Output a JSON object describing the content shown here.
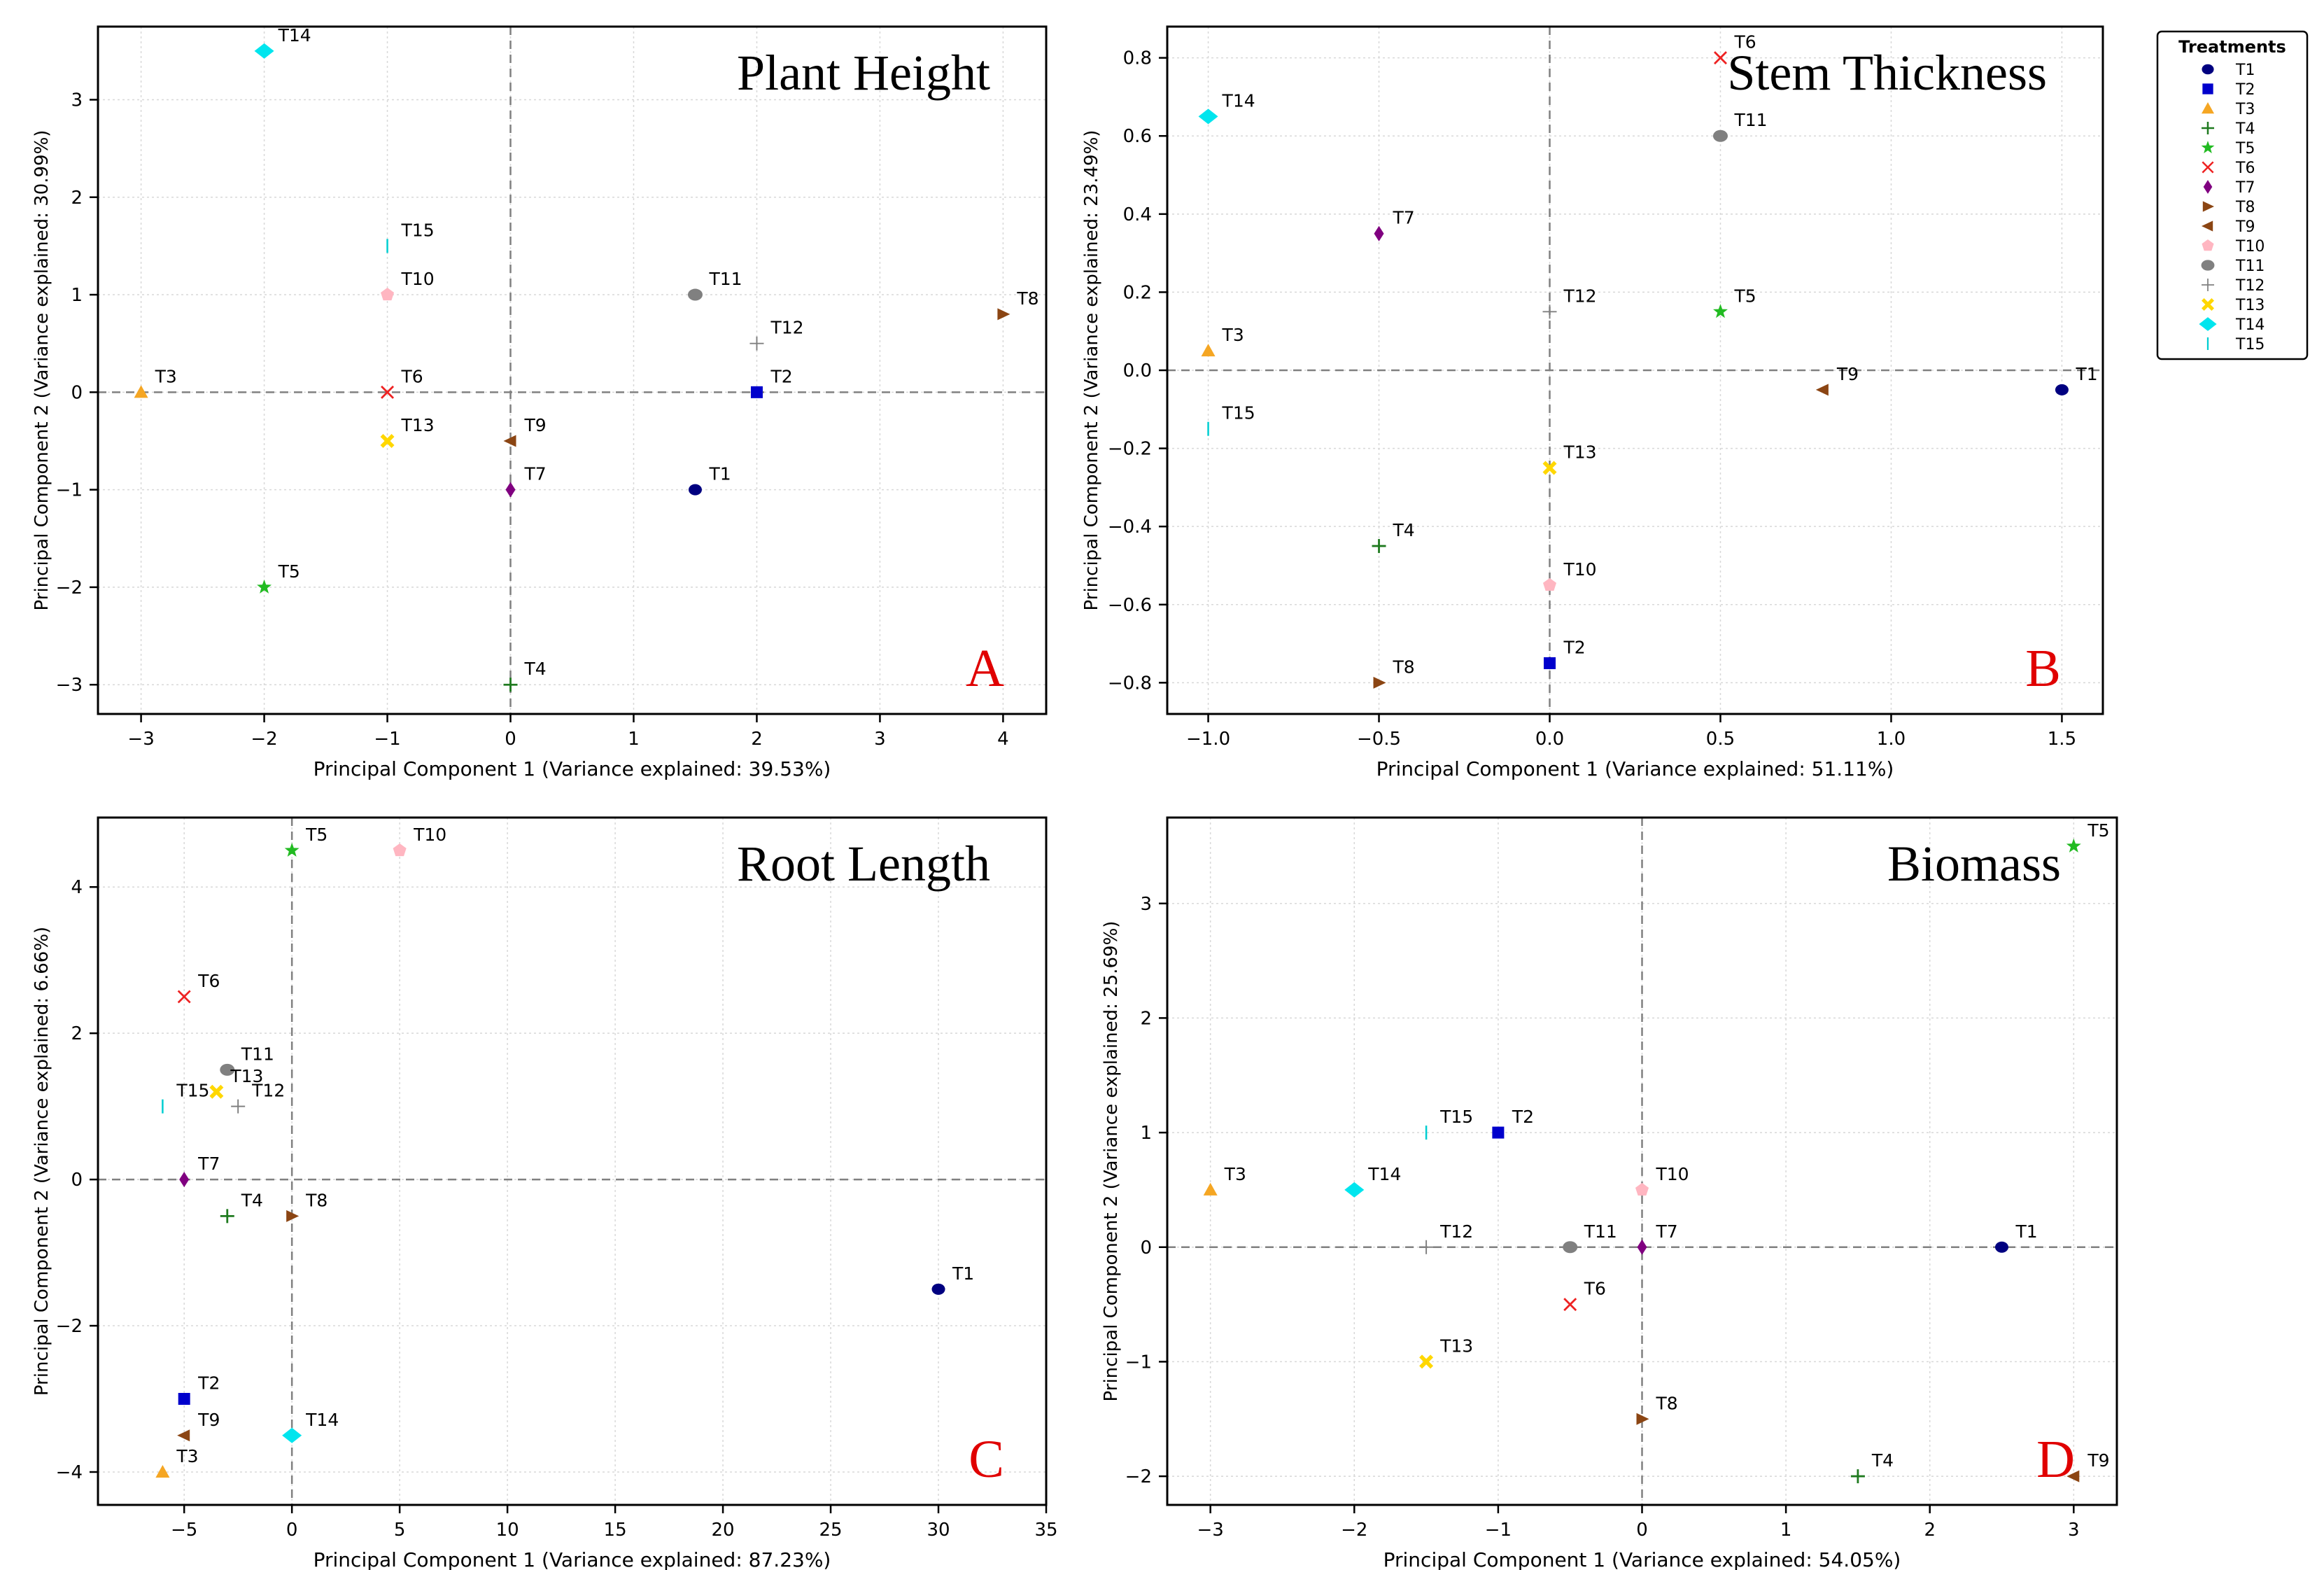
{
  "legend": {
    "title": "Treatments",
    "placement": "right",
    "entries": [
      {
        "label": "T1",
        "marker": "circle",
        "color": "#000080"
      },
      {
        "label": "T2",
        "marker": "square",
        "color": "#0000cc"
      },
      {
        "label": "T3",
        "marker": "triangle-up",
        "color": "#f5a623"
      },
      {
        "label": "T4",
        "marker": "plus",
        "color": "#1f7a1f"
      },
      {
        "label": "T5",
        "marker": "star",
        "color": "#22bb22"
      },
      {
        "label": "T6",
        "marker": "x",
        "color": "#ee2222"
      },
      {
        "label": "T7",
        "marker": "diamond",
        "color": "#800080"
      },
      {
        "label": "T8",
        "marker": "triangle-right",
        "color": "#8b4513"
      },
      {
        "label": "T9",
        "marker": "triangle-left",
        "color": "#8b4513"
      },
      {
        "label": "T10",
        "marker": "pentagon",
        "color": "#ffb6c1"
      },
      {
        "label": "T11",
        "marker": "ellipse",
        "color": "#808080"
      },
      {
        "label": "T12",
        "marker": "thin-plus",
        "color": "#808080"
      },
      {
        "label": "T13",
        "marker": "bold-x",
        "color": "#ffd700"
      },
      {
        "label": "T14",
        "marker": "diamond-wide",
        "color": "#00e5ee"
      },
      {
        "label": "T15",
        "marker": "vline",
        "color": "#00ced1"
      }
    ]
  },
  "chart_data": [
    {
      "type": "scatter",
      "title": "Plant Height",
      "panel_letter": "A",
      "xlabel": "Principal Component 1 (Variance explained: 39.53%)",
      "ylabel": "Principal Component 2 (Variance explained: 30.99%)",
      "xlim": [
        -3.35,
        4.35
      ],
      "ylim": [
        -3.3,
        3.75
      ],
      "xticks": [
        -3,
        -2,
        -1,
        0,
        1,
        2,
        3,
        4
      ],
      "yticks": [
        -3,
        -2,
        -1,
        0,
        1,
        2,
        3
      ],
      "grid": true,
      "reference_lines": {
        "x": 0,
        "y": 0
      },
      "points": [
        {
          "label": "T1",
          "x": 1.5,
          "y": -1.0
        },
        {
          "label": "T2",
          "x": 2.0,
          "y": 0.0
        },
        {
          "label": "T3",
          "x": -3.0,
          "y": 0.0
        },
        {
          "label": "T4",
          "x": 0.0,
          "y": -3.0
        },
        {
          "label": "T5",
          "x": -2.0,
          "y": -2.0
        },
        {
          "label": "T6",
          "x": -1.0,
          "y": 0.0
        },
        {
          "label": "T7",
          "x": 0.0,
          "y": -1.0
        },
        {
          "label": "T8",
          "x": 4.0,
          "y": 0.8
        },
        {
          "label": "T9",
          "x": 0.0,
          "y": -0.5
        },
        {
          "label": "T10",
          "x": -1.0,
          "y": 1.0
        },
        {
          "label": "T11",
          "x": 1.5,
          "y": 1.0
        },
        {
          "label": "T12",
          "x": 2.0,
          "y": 0.5
        },
        {
          "label": "T13",
          "x": -1.0,
          "y": -0.5
        },
        {
          "label": "T14",
          "x": -2.0,
          "y": 3.5
        },
        {
          "label": "T15",
          "x": -1.0,
          "y": 1.5
        }
      ]
    },
    {
      "type": "scatter",
      "title": "Stem Thickness",
      "panel_letter": "B",
      "xlabel": "Principal Component 1 (Variance explained: 51.11%)",
      "ylabel": "Principal Component 2 (Variance explained: 23.49%)",
      "xlim": [
        -1.12,
        1.62
      ],
      "ylim": [
        -0.88,
        0.88
      ],
      "xticks": [
        -1.0,
        -0.5,
        0.0,
        0.5,
        1.0,
        1.5
      ],
      "yticks": [
        -0.8,
        -0.6,
        -0.4,
        -0.2,
        0.0,
        0.2,
        0.4,
        0.6,
        0.8
      ],
      "grid": true,
      "reference_lines": {
        "x": 0,
        "y": 0
      },
      "points": [
        {
          "label": "T1",
          "x": 1.5,
          "y": -0.05
        },
        {
          "label": "T2",
          "x": 0.0,
          "y": -0.75
        },
        {
          "label": "T3",
          "x": -1.0,
          "y": 0.05
        },
        {
          "label": "T4",
          "x": -0.5,
          "y": -0.45
        },
        {
          "label": "T5",
          "x": 0.5,
          "y": 0.15
        },
        {
          "label": "T6",
          "x": 0.5,
          "y": 0.8
        },
        {
          "label": "T7",
          "x": -0.5,
          "y": 0.35
        },
        {
          "label": "T8",
          "x": -0.5,
          "y": -0.8
        },
        {
          "label": "T9",
          "x": 0.8,
          "y": -0.05
        },
        {
          "label": "T10",
          "x": 0.0,
          "y": -0.55
        },
        {
          "label": "T11",
          "x": 0.5,
          "y": 0.6
        },
        {
          "label": "T12",
          "x": 0.0,
          "y": 0.15
        },
        {
          "label": "T13",
          "x": 0.0,
          "y": -0.25
        },
        {
          "label": "T14",
          "x": -1.0,
          "y": 0.65
        },
        {
          "label": "T15",
          "x": -1.0,
          "y": -0.15
        }
      ]
    },
    {
      "type": "scatter",
      "title": "Root Length",
      "panel_letter": "C",
      "xlabel": "Principal Component 1 (Variance explained: 87.23%)",
      "ylabel": "Principal Component 2 (Variance explained: 6.66%)",
      "xlim": [
        -9.0,
        35.0
      ],
      "ylim": [
        -4.45,
        4.95
      ],
      "xticks": [
        -5,
        0,
        5,
        10,
        15,
        20,
        25,
        30,
        35
      ],
      "yticks": [
        -4,
        -2,
        0,
        2,
        4
      ],
      "grid": true,
      "reference_lines": {
        "x": 0,
        "y": 0
      },
      "points": [
        {
          "label": "T1",
          "x": 30.0,
          "y": -1.5
        },
        {
          "label": "T2",
          "x": -5.0,
          "y": -3.0
        },
        {
          "label": "T3",
          "x": -6.0,
          "y": -4.0
        },
        {
          "label": "T4",
          "x": -3.0,
          "y": -0.5
        },
        {
          "label": "T5",
          "x": 0.0,
          "y": 4.5
        },
        {
          "label": "T6",
          "x": -5.0,
          "y": 2.5
        },
        {
          "label": "T7",
          "x": -5.0,
          "y": 0.0
        },
        {
          "label": "T8",
          "x": 0.0,
          "y": -0.5
        },
        {
          "label": "T9",
          "x": -5.0,
          "y": -3.5
        },
        {
          "label": "T10",
          "x": 5.0,
          "y": 4.5
        },
        {
          "label": "T11",
          "x": -3.0,
          "y": 1.5
        },
        {
          "label": "T12",
          "x": -2.5,
          "y": 1.0
        },
        {
          "label": "T13",
          "x": -3.5,
          "y": 1.2
        },
        {
          "label": "T14",
          "x": 0.0,
          "y": -3.5
        },
        {
          "label": "T15",
          "x": -6.0,
          "y": 1.0
        }
      ]
    },
    {
      "type": "scatter",
      "title": "Biomass",
      "panel_letter": "D",
      "xlabel": "Principal Component 1 (Variance explained: 54.05%)",
      "ylabel": "Principal Component 2 (Variance explained: 25.69%)",
      "xlim": [
        -3.3,
        3.3
      ],
      "ylim": [
        -2.25,
        3.75
      ],
      "xticks": [
        -3,
        -2,
        -1,
        0,
        1,
        2,
        3
      ],
      "yticks": [
        -2,
        -1,
        0,
        1,
        2,
        3
      ],
      "grid": true,
      "reference_lines": {
        "x": 0,
        "y": 0
      },
      "points": [
        {
          "label": "T1",
          "x": 2.5,
          "y": 0.0
        },
        {
          "label": "T2",
          "x": -1.0,
          "y": 1.0
        },
        {
          "label": "T3",
          "x": -3.0,
          "y": 0.5
        },
        {
          "label": "T4",
          "x": 1.5,
          "y": -2.0
        },
        {
          "label": "T5",
          "x": 3.0,
          "y": 3.5
        },
        {
          "label": "T6",
          "x": -0.5,
          "y": -0.5
        },
        {
          "label": "T7",
          "x": 0.0,
          "y": 0.0
        },
        {
          "label": "T8",
          "x": 0.0,
          "y": -1.5
        },
        {
          "label": "T9",
          "x": 3.0,
          "y": -2.0
        },
        {
          "label": "T10",
          "x": 0.0,
          "y": 0.5
        },
        {
          "label": "T11",
          "x": -0.5,
          "y": 0.0
        },
        {
          "label": "T12",
          "x": -1.5,
          "y": 0.0
        },
        {
          "label": "T13",
          "x": -1.5,
          "y": -1.0
        },
        {
          "label": "T14",
          "x": -2.0,
          "y": 0.5
        },
        {
          "label": "T15",
          "x": -1.5,
          "y": 1.0
        }
      ]
    }
  ]
}
